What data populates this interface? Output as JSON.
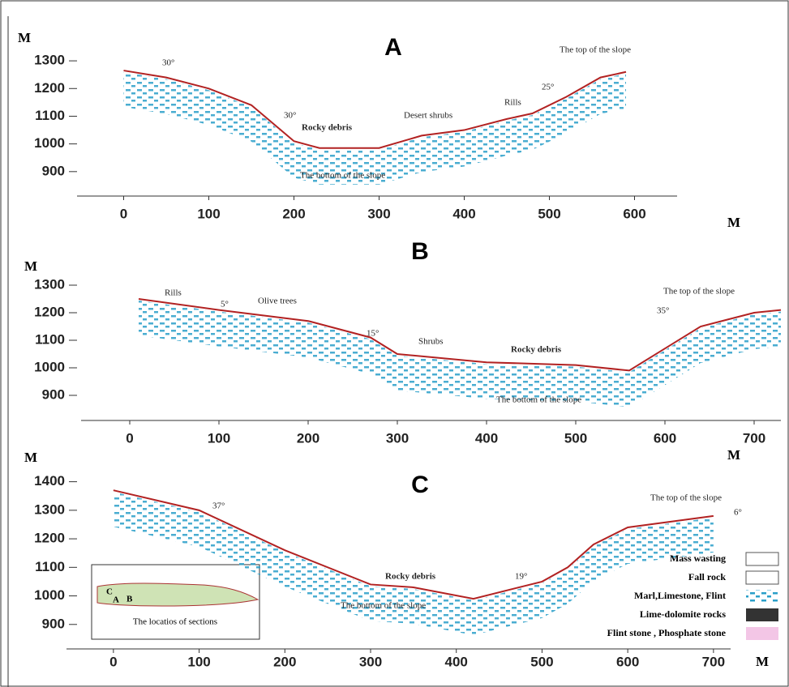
{
  "chart_data": [
    {
      "type": "line",
      "title": "A",
      "x_label": "M",
      "y_label": "M",
      "x": [
        0,
        50,
        100,
        150,
        200,
        230,
        300,
        350,
        400,
        450,
        480,
        520,
        560,
        590
      ],
      "series": [
        {
          "color": "#b22222",
          "values": [
            1265,
            1240,
            1200,
            1140,
            1010,
            985,
            985,
            1030,
            1050,
            1090,
            1110,
            1170,
            1240,
            1260
          ]
        }
      ],
      "xlim": [
        -50,
        650
      ],
      "ylim": [
        800,
        1350
      ],
      "xticks": [
        0,
        100,
        200,
        300,
        400,
        500,
        600
      ],
      "yticks": [
        900,
        1000,
        1100,
        1200,
        1300
      ],
      "annotations": [
        "30°",
        "30°",
        "Rocky debris",
        "Desert shrubs",
        "Rills",
        "25°",
        "The top of the slope",
        "The bottom of the slope"
      ]
    },
    {
      "type": "line",
      "title": "B",
      "x_label": "M",
      "y_label": "M",
      "x": [
        10,
        100,
        200,
        270,
        300,
        400,
        500,
        560,
        600,
        640,
        700,
        730
      ],
      "series": [
        {
          "color": "#b22222",
          "values": [
            1250,
            1210,
            1170,
            1110,
            1050,
            1020,
            1010,
            990,
            1070,
            1150,
            1200,
            1210
          ]
        }
      ],
      "xlim": [
        -50,
        730
      ],
      "ylim": [
        800,
        1350
      ],
      "xticks": [
        0,
        100,
        200,
        300,
        400,
        500,
        600,
        700
      ],
      "yticks": [
        900,
        1000,
        1100,
        1200,
        1300
      ],
      "annotations": [
        "Rills",
        "5°",
        "Olive trees",
        "15°",
        "Shrubs",
        "Rocky debris",
        "35°",
        "The top of the slope",
        "The bottom of the slope"
      ]
    },
    {
      "type": "line",
      "title": "C",
      "x_label": "M",
      "y_label": "M",
      "x": [
        0,
        100,
        200,
        300,
        350,
        420,
        500,
        530,
        560,
        600,
        700
      ],
      "series": [
        {
          "color": "#b22222",
          "values": [
            1370,
            1300,
            1160,
            1040,
            1030,
            990,
            1050,
            1100,
            1180,
            1240,
            1280
          ]
        }
      ],
      "xlim": [
        -50,
        720
      ],
      "ylim": [
        800,
        1450
      ],
      "xticks": [
        0,
        100,
        200,
        300,
        400,
        500,
        600,
        700
      ],
      "yticks": [
        900,
        1000,
        1100,
        1200,
        1300,
        1400
      ],
      "annotations": [
        "37°",
        "Rocky debris",
        "19°",
        "The top of the slope",
        "6°",
        "The bottom of the slope"
      ],
      "legend_items": [
        "Mass wasting",
        "Fall rock",
        "Marl,Limestone, Flint",
        "Lime-dolomite rocks",
        "Flint stone , Phosphate stone"
      ],
      "inset": {
        "title": "The locatios of sections",
        "labels": [
          "C",
          "A",
          "B"
        ]
      }
    }
  ]
}
